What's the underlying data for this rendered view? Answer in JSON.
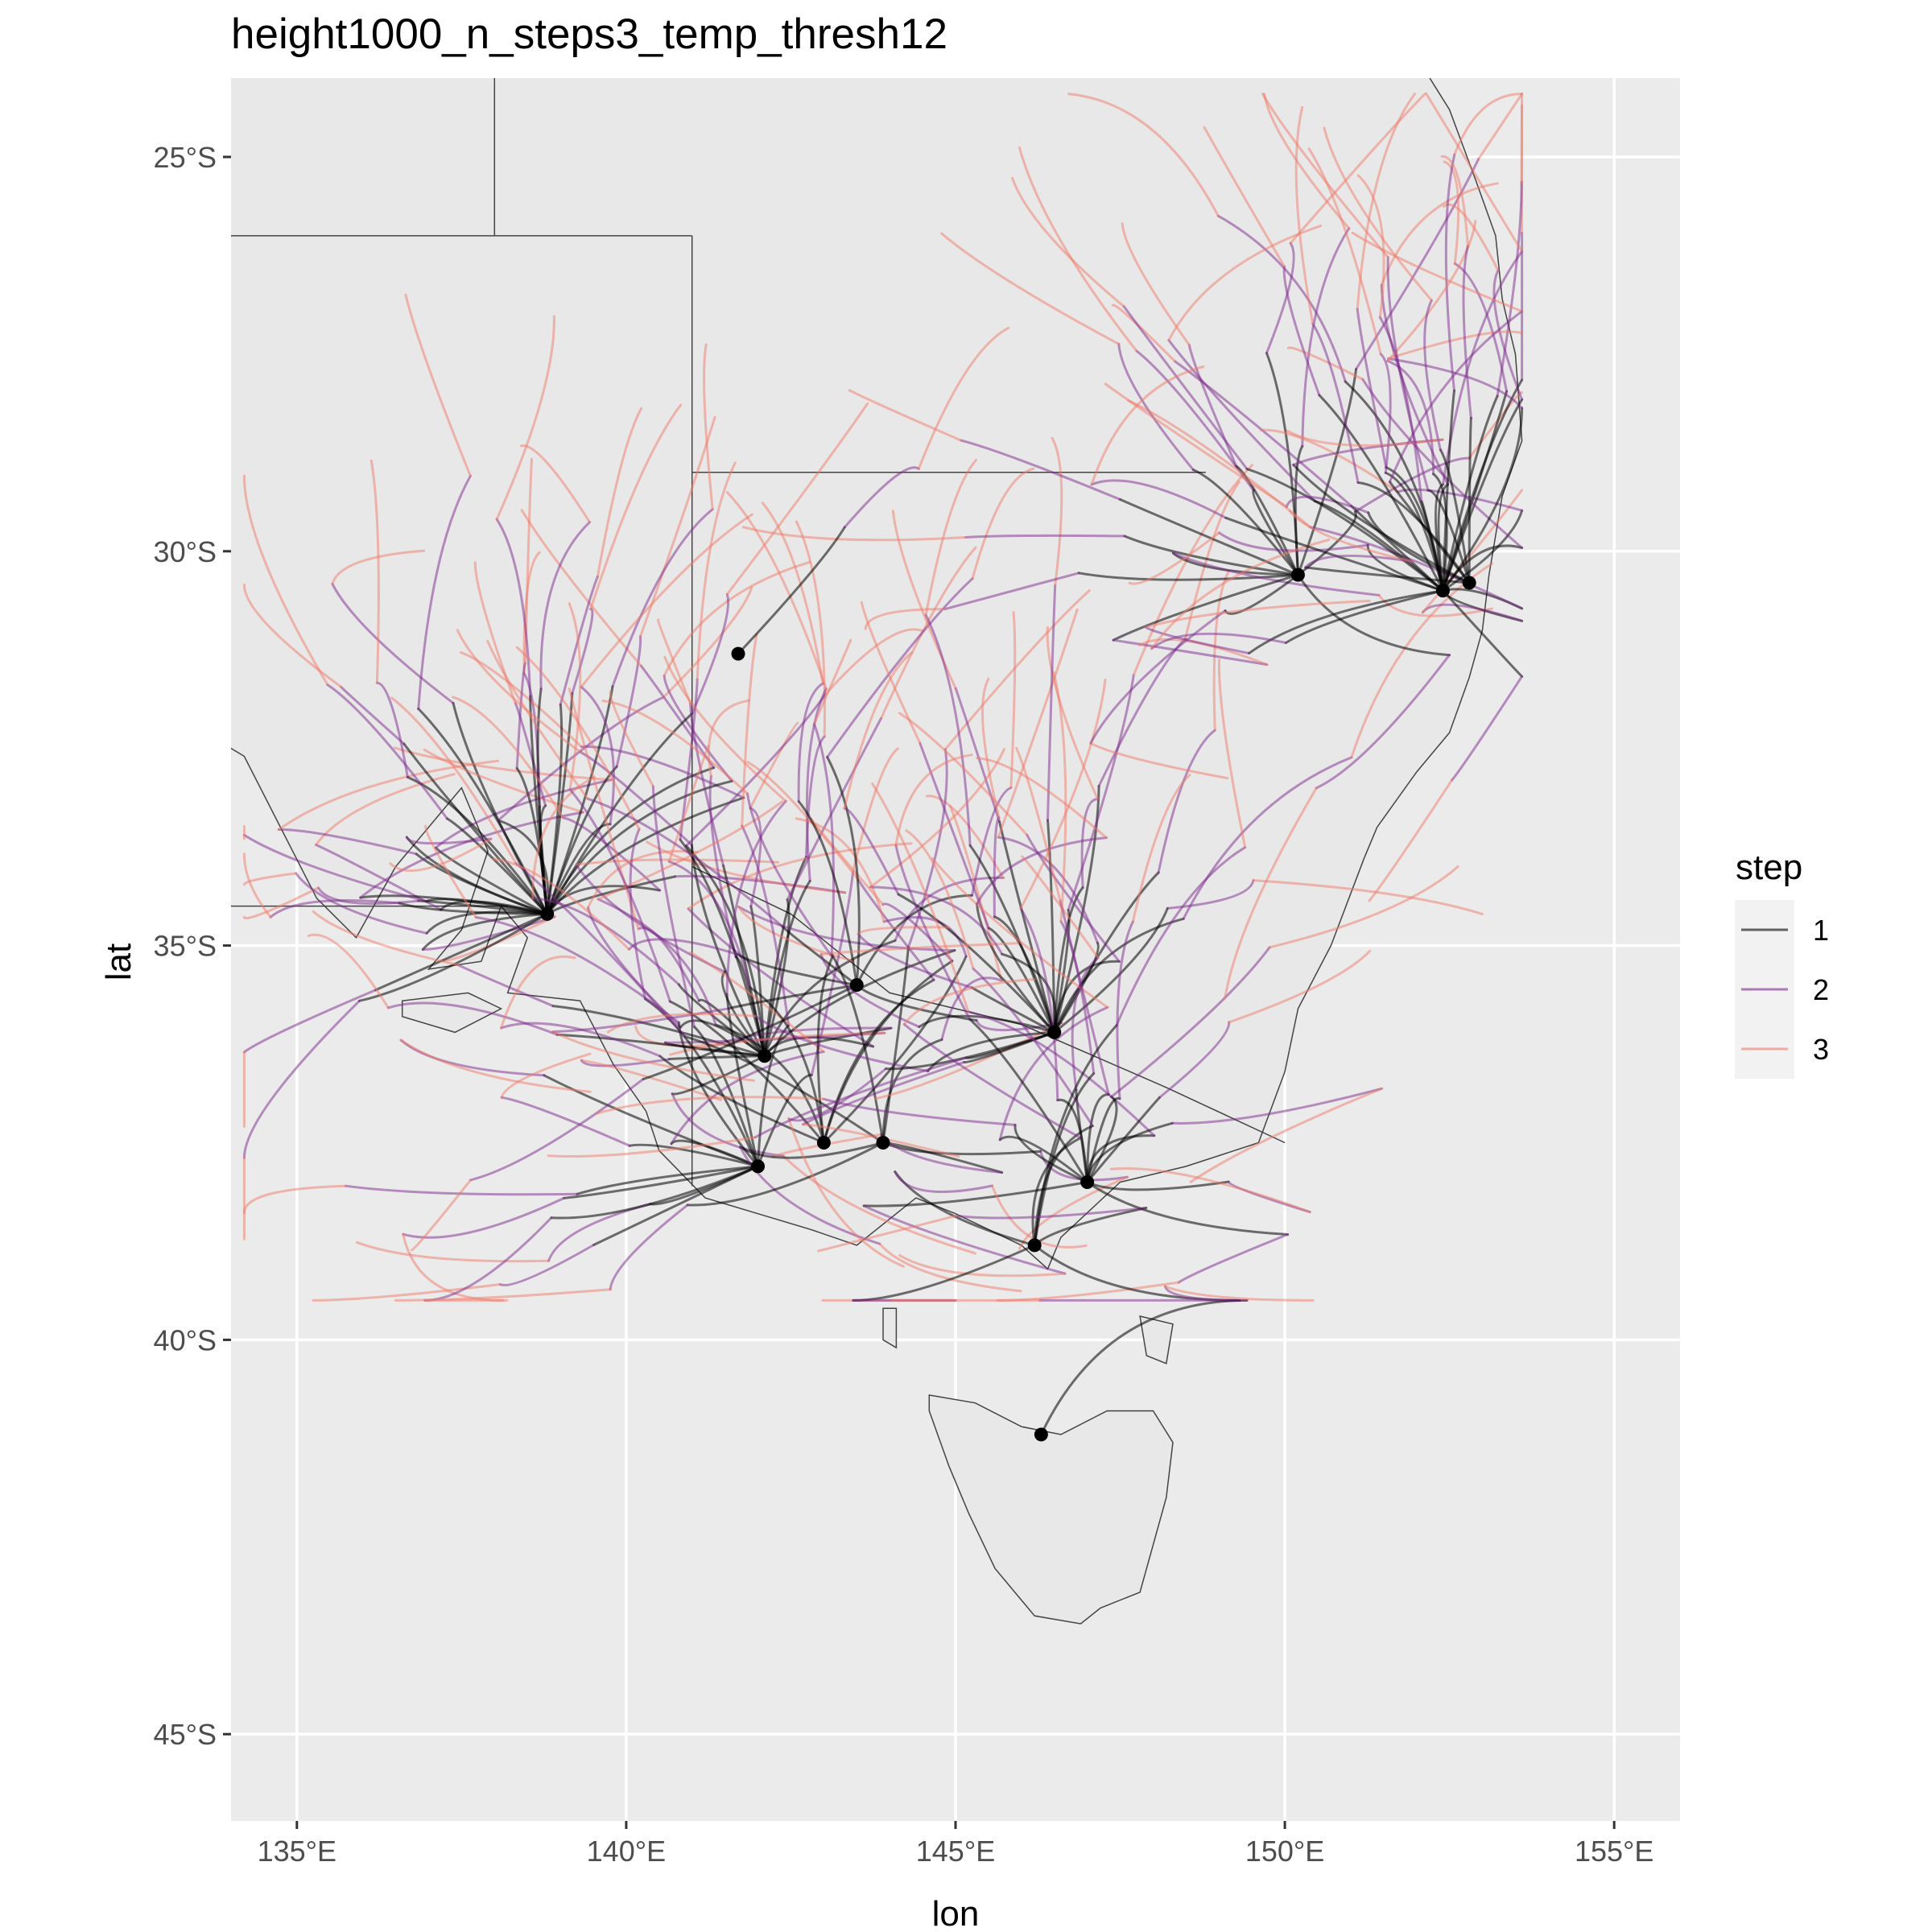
{
  "title": "height1000_n_steps3_temp_thresh12",
  "chart_data": {
    "type": "map",
    "xlabel": "lon",
    "ylabel": "lat",
    "xlim": [
      134,
      156
    ],
    "ylim": [
      -46.1,
      -24
    ],
    "x_ticks": [
      {
        "value": 135,
        "label": "135°E"
      },
      {
        "value": 140,
        "label": "140°E"
      },
      {
        "value": 145,
        "label": "145°E"
      },
      {
        "value": 150,
        "label": "150°E"
      },
      {
        "value": 155,
        "label": "155°E"
      }
    ],
    "y_ticks": [
      {
        "value": -25,
        "label": "25°S"
      },
      {
        "value": -30,
        "label": "30°S"
      },
      {
        "value": -35,
        "label": "35°S"
      },
      {
        "value": -40,
        "label": "40°S"
      },
      {
        "value": -45,
        "label": "45°S"
      }
    ],
    "grid": true,
    "legend": {
      "title": "step",
      "position": "right",
      "items": [
        {
          "label": "1",
          "color": "#000000"
        },
        {
          "label": "2",
          "color": "#7b2a8c"
        },
        {
          "label": "3",
          "color": "#f07a68"
        }
      ]
    },
    "origins": [
      {
        "lon": 138.8,
        "lat": -34.6,
        "tracks": 34
      },
      {
        "lon": 142.1,
        "lat": -36.4,
        "tracks": 22
      },
      {
        "lon": 142.0,
        "lat": -37.8,
        "tracks": 14
      },
      {
        "lon": 143.0,
        "lat": -37.5,
        "tracks": 8
      },
      {
        "lon": 143.9,
        "lat": -37.5,
        "tracks": 8
      },
      {
        "lon": 143.5,
        "lat": -35.5,
        "tracks": 8
      },
      {
        "lon": 146.5,
        "lat": -36.1,
        "tracks": 22
      },
      {
        "lon": 147.0,
        "lat": -38.0,
        "tracks": 14
      },
      {
        "lon": 146.2,
        "lat": -38.8,
        "tracks": 8
      },
      {
        "lon": 150.2,
        "lat": -30.3,
        "tracks": 14
      },
      {
        "lon": 152.4,
        "lat": -30.5,
        "tracks": 26
      },
      {
        "lon": 152.8,
        "lat": -30.4,
        "tracks": 8
      },
      {
        "lon": 141.7,
        "lat": -31.3,
        "tracks": 1
      },
      {
        "lon": 146.3,
        "lat": -41.2,
        "tracks": 1
      }
    ]
  },
  "colors": {
    "panel": "#ebebeb",
    "grid": "#ffffff",
    "land": "#e8e8e8",
    "border": "#444444",
    "step1": "#000000",
    "step2": "#7b2a8c",
    "step3": "#f07a68"
  }
}
